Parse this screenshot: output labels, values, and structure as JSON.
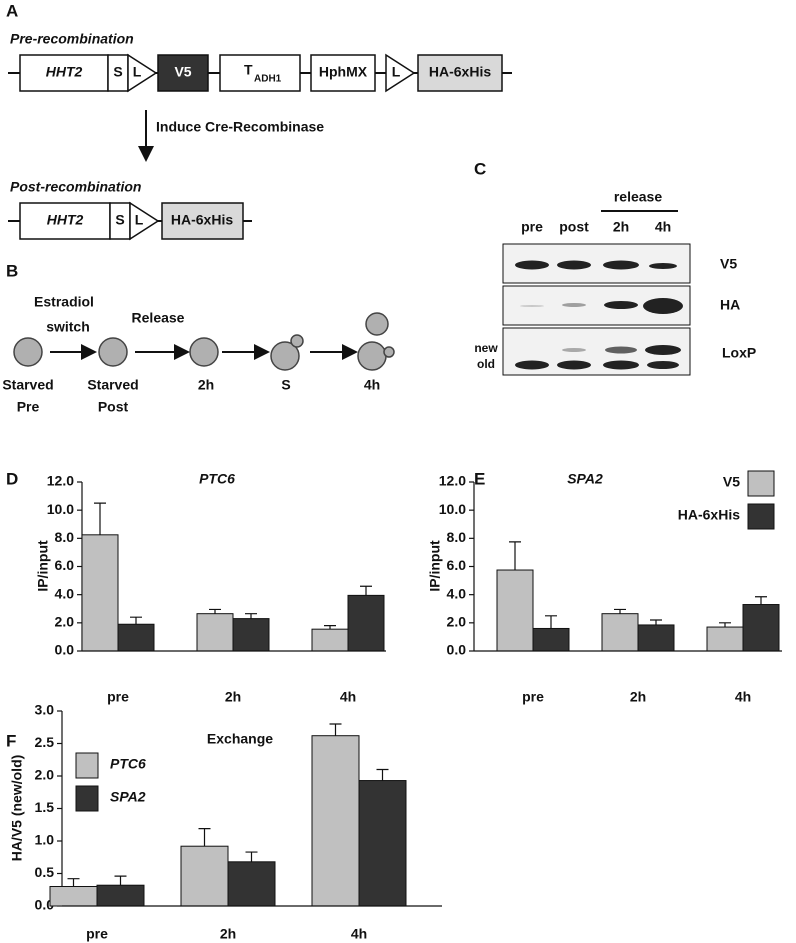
{
  "panel_a": {
    "label": "A",
    "pre_title": "Pre-recombination",
    "pre_construct": [
      "HHT2",
      "S",
      "L",
      "V5",
      "T",
      "ADH1",
      "HphMX",
      "L",
      "HA-6xHis"
    ],
    "arrow_label": "Induce Cre-Recombinase",
    "post_title": "Post-recombination",
    "post_construct": [
      "HHT2",
      "S",
      "L",
      "HA-6xHis"
    ]
  },
  "panel_b": {
    "label": "B",
    "step1": [
      "Estradiol",
      "switch"
    ],
    "step2": "Release",
    "stages": [
      [
        "Starved",
        "Pre"
      ],
      [
        "Starved",
        "Post"
      ],
      [
        "2h"
      ],
      [
        "S"
      ],
      [
        "4h"
      ]
    ]
  },
  "panel_c": {
    "label": "C",
    "group": "release",
    "lanes": [
      "pre",
      "post",
      "2h",
      "4h"
    ],
    "blots": [
      "V5",
      "HA",
      "LoxP"
    ],
    "bands": [
      "new",
      "old"
    ]
  },
  "chart_data": [
    {
      "type": "bar",
      "panel": "D",
      "title": "PTC6",
      "ylabel": "IP/input",
      "categories": [
        "pre",
        "2h",
        "4h"
      ],
      "series": [
        {
          "name": "V5",
          "color": "#c0c0c0",
          "values": [
            8.25,
            2.65,
            1.55
          ],
          "errors": [
            2.25,
            0.3,
            0.25
          ]
        },
        {
          "name": "HA-6xHis",
          "color": "#333333",
          "values": [
            1.9,
            2.3,
            3.95
          ],
          "errors": [
            0.5,
            0.35,
            0.65
          ]
        }
      ],
      "ylim": [
        0,
        12
      ],
      "yticks": [
        {
          "value": 0,
          "label": "0.0"
        },
        {
          "value": 2,
          "label": "2.0"
        },
        {
          "value": 4,
          "label": "4.0"
        },
        {
          "value": 6,
          "label": "6.0"
        },
        {
          "value": 8,
          "label": "8.0"
        },
        {
          "value": 10,
          "label": "10.0"
        },
        {
          "value": 12,
          "label": "12.0"
        }
      ],
      "legend": false
    },
    {
      "type": "bar",
      "panel": "E",
      "title": "SPA2",
      "ylabel": "IP/input",
      "categories": [
        "pre",
        "2h",
        "4h"
      ],
      "series": [
        {
          "name": "V5",
          "color": "#c0c0c0",
          "values": [
            5.75,
            2.65,
            1.7
          ],
          "errors": [
            2.0,
            0.3,
            0.3
          ]
        },
        {
          "name": "HA-6xHis",
          "color": "#333333",
          "values": [
            1.6,
            1.85,
            3.3
          ],
          "errors": [
            0.9,
            0.35,
            0.55
          ]
        }
      ],
      "ylim": [
        0,
        12
      ],
      "yticks": [
        {
          "value": 0,
          "label": "0.0"
        },
        {
          "value": 2,
          "label": "2.0"
        },
        {
          "value": 4,
          "label": "4.0"
        },
        {
          "value": 6,
          "label": "6.0"
        },
        {
          "value": 8,
          "label": "8.0"
        },
        {
          "value": 10,
          "label": "10.0"
        },
        {
          "value": 12,
          "label": "12.0"
        }
      ],
      "legend": true,
      "legend_position": "upper right"
    },
    {
      "type": "bar",
      "panel": "F",
      "title": "Exchange",
      "ylabel": "HA/V5 (new/old)",
      "categories": [
        "pre",
        "2h",
        "4h"
      ],
      "series": [
        {
          "name": "PTC6",
          "color": "#c0c0c0",
          "values": [
            0.3,
            0.92,
            2.62
          ],
          "errors": [
            0.12,
            0.27,
            0.18
          ]
        },
        {
          "name": "SPA2",
          "color": "#333333",
          "values": [
            0.32,
            0.68,
            1.93
          ],
          "errors": [
            0.14,
            0.15,
            0.17
          ]
        }
      ],
      "ylim": [
        0,
        3
      ],
      "yticks": [
        {
          "value": 0,
          "label": "0.0"
        },
        {
          "value": 0.5,
          "label": "0.5"
        },
        {
          "value": 1,
          "label": "1.0"
        },
        {
          "value": 1.5,
          "label": "1.5"
        },
        {
          "value": 2,
          "label": "2.0"
        },
        {
          "value": 2.5,
          "label": "2.5"
        },
        {
          "value": 3,
          "label": "3.0"
        }
      ],
      "legend": true,
      "legend_position": "upper left"
    }
  ]
}
